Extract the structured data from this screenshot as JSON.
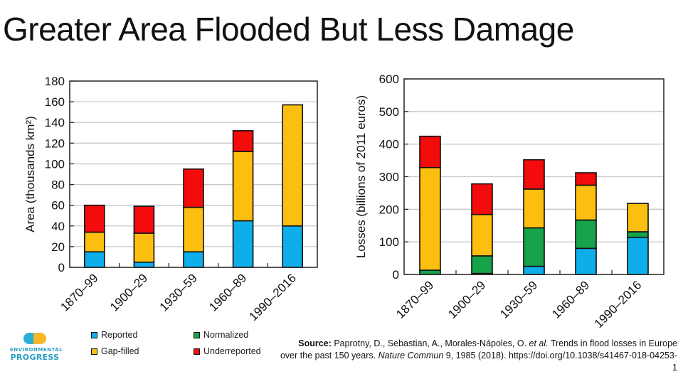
{
  "page": {
    "title": "Greater Area Flooded But Less Damage"
  },
  "legend": [
    {
      "key": "reported",
      "label": "Reported",
      "color": "#0eaeea"
    },
    {
      "key": "gapfilled",
      "label": "Gap-filled",
      "color": "#fdbf0f"
    },
    {
      "key": "normalized",
      "label": "Normalized",
      "color": "#16a34a"
    },
    {
      "key": "underreported",
      "label": "Underreported",
      "color": "#f40b0b"
    }
  ],
  "logo": {
    "line1": "ENVIRONMENTAL",
    "line2": "PROGRESS"
  },
  "source": {
    "label": "Source:",
    "authors": " Paprotny, D., Sebastian, A., Morales-Nápoles, O. ",
    "etal": "et al.",
    "title": " Trends in flood losses in Europe over the past 150 years. ",
    "journal": "Nature Commun",
    "rest": " 9, 1985 (2018). https://doi.org/10.1038/s41467-018-04253-1"
  },
  "chart_data": [
    {
      "type": "bar",
      "stacked": true,
      "title": "",
      "xlabel": "",
      "ylabel": "Area (thousands km²)",
      "ylim": [
        0,
        180
      ],
      "yticks": [
        0,
        20,
        40,
        60,
        80,
        100,
        120,
        140,
        160,
        180
      ],
      "grid": true,
      "categories": [
        "1870–99",
        "1900–29",
        "1930–59",
        "1960–89",
        "1990–2016"
      ],
      "series": [
        {
          "name": "Reported",
          "color": "#0eaeea",
          "values": [
            15,
            5,
            15,
            45,
            40
          ]
        },
        {
          "name": "Gap-filled",
          "color": "#fdbf0f",
          "values": [
            19,
            28,
            43,
            67,
            117
          ]
        },
        {
          "name": "Underreported",
          "color": "#f40b0b",
          "values": [
            26,
            26,
            37,
            20,
            0
          ]
        }
      ]
    },
    {
      "type": "bar",
      "stacked": true,
      "title": "",
      "xlabel": "",
      "ylabel": "Losses (billions of 2011 euros)",
      "ylim": [
        0,
        600
      ],
      "yticks": [
        0,
        100,
        200,
        300,
        400,
        500,
        600
      ],
      "grid": true,
      "categories": [
        "1870–99",
        "1900–29",
        "1930–59",
        "1960–89",
        "1990–2016"
      ],
      "series": [
        {
          "name": "Reported",
          "color": "#0eaeea",
          "values": [
            0,
            3,
            25,
            80,
            114
          ]
        },
        {
          "name": "Normalized",
          "color": "#16a34a",
          "values": [
            13,
            54,
            118,
            87,
            17
          ]
        },
        {
          "name": "Gap-filled",
          "color": "#fdbf0f",
          "values": [
            315,
            127,
            119,
            107,
            87
          ]
        },
        {
          "name": "Underreported",
          "color": "#f40b0b",
          "values": [
            96,
            94,
            90,
            38,
            0
          ]
        }
      ]
    }
  ]
}
